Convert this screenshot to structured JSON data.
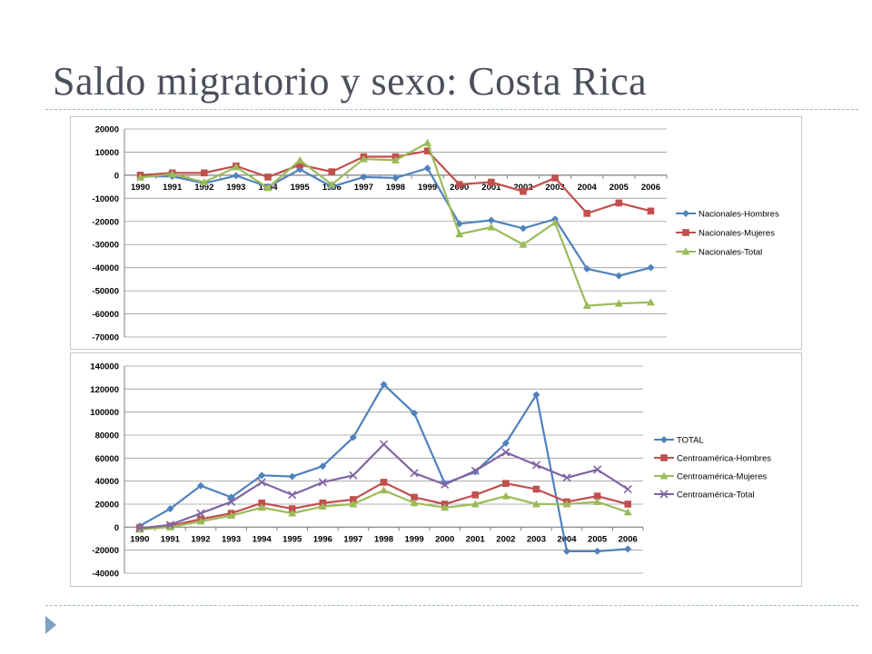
{
  "slide": {
    "title": "Saldo migratorio y sexo: Costa Rica"
  },
  "chart_data": [
    {
      "type": "line",
      "categories": [
        "1990",
        "1991",
        "1992",
        "1993",
        "1994",
        "1995",
        "1996",
        "1997",
        "1998",
        "1999",
        "2000",
        "2001",
        "2002",
        "2003",
        "2004",
        "2005",
        "2006"
      ],
      "ylim": [
        -70000,
        20000
      ],
      "yticks": [
        20000,
        10000,
        0,
        -10000,
        -20000,
        -30000,
        -40000,
        -50000,
        -60000,
        -70000
      ],
      "grid": "horizontal",
      "legend": "right",
      "series": [
        {
          "name": "Nacionales-Hombres",
          "marker": "diamond",
          "color": "#4f81bd",
          "values": [
            -500,
            -500,
            -3500,
            -200,
            -5000,
            2500,
            -5000,
            -800,
            -1200,
            3000,
            -21000,
            -19500,
            -23000,
            -19000,
            -40500,
            -43500,
            -40000
          ]
        },
        {
          "name": "Nacionales-Mujeres",
          "marker": "square",
          "color": "#c0504d",
          "values": [
            0,
            1000,
            1000,
            4000,
            -800,
            4500,
            1500,
            8000,
            8000,
            10500,
            -4000,
            -3000,
            -7000,
            -1200,
            -16500,
            -12000,
            -15500
          ]
        },
        {
          "name": "Nacionales-Total",
          "marker": "triangle",
          "color": "#9bbb59",
          "values": [
            -1000,
            500,
            -3000,
            3500,
            -5500,
            6500,
            -4000,
            7000,
            6500,
            14000,
            -25500,
            -22500,
            -30000,
            -20500,
            -56500,
            -55500,
            -55000
          ]
        }
      ]
    },
    {
      "type": "line",
      "categories": [
        "1990",
        "1991",
        "1992",
        "1993",
        "1994",
        "1995",
        "1996",
        "1997",
        "1998",
        "1999",
        "2000",
        "2001",
        "2002",
        "2003",
        "2004",
        "2005",
        "2006"
      ],
      "ylim": [
        -40000,
        140000
      ],
      "yticks": [
        140000,
        120000,
        100000,
        80000,
        60000,
        40000,
        20000,
        0,
        -20000,
        -40000
      ],
      "grid": "horizontal",
      "legend": "right",
      "series": [
        {
          "name": "TOTAL",
          "marker": "diamond",
          "color": "#4f81bd",
          "values": [
            1000,
            16000,
            36000,
            26000,
            45000,
            44000,
            53000,
            78000,
            124000,
            99000,
            38000,
            48000,
            73000,
            115000,
            -21000,
            -21000,
            -19000
          ]
        },
        {
          "name": "Centroamérica-Hombres",
          "marker": "square",
          "color": "#c0504d",
          "values": [
            -1000,
            1000,
            7000,
            12000,
            21000,
            16000,
            21000,
            24000,
            39000,
            26000,
            20000,
            28000,
            38000,
            33000,
            22000,
            27000,
            20000
          ]
        },
        {
          "name": "Centroamérica-Mujeres",
          "marker": "triangle",
          "color": "#9bbb59",
          "values": [
            -2000,
            0,
            5000,
            10000,
            17000,
            12000,
            18000,
            20000,
            32000,
            21000,
            17000,
            20000,
            27000,
            20000,
            20000,
            22000,
            13000
          ]
        },
        {
          "name": "Centroamérica-Total",
          "marker": "x",
          "color": "#8064a2",
          "values": [
            -1000,
            2000,
            12000,
            22000,
            39000,
            28000,
            39000,
            45000,
            72000,
            47000,
            37000,
            49000,
            65000,
            54000,
            43000,
            50000,
            33000
          ]
        }
      ]
    }
  ]
}
